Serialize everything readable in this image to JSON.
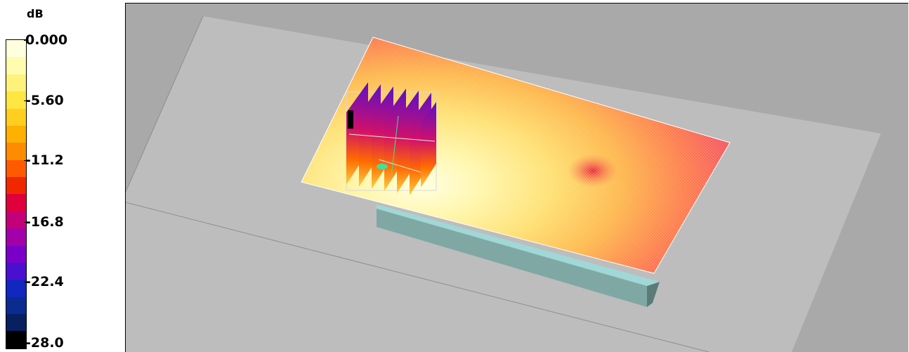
{
  "legend": {
    "unit": "dB",
    "ticks": [
      "0.000",
      "-5.60",
      "-11.2",
      "-16.8",
      "-22.4",
      "-28.0"
    ],
    "colors": [
      "#ffffe0",
      "#fffcb0",
      "#fff27a",
      "#ffe640",
      "#ffce1e",
      "#ffb000",
      "#ff8c00",
      "#ff5a00",
      "#f02800",
      "#e0003c",
      "#c40078",
      "#a200a8",
      "#7a00c8",
      "#4a10d0",
      "#1226c0",
      "#0a2c90",
      "#082060",
      "#000000"
    ]
  },
  "viewport": {
    "background": "#a9a9a9",
    "ground_plane": "#bdbdbd",
    "platform_color": "#7fa8a4",
    "platform_top": "#9fd8d6"
  }
}
